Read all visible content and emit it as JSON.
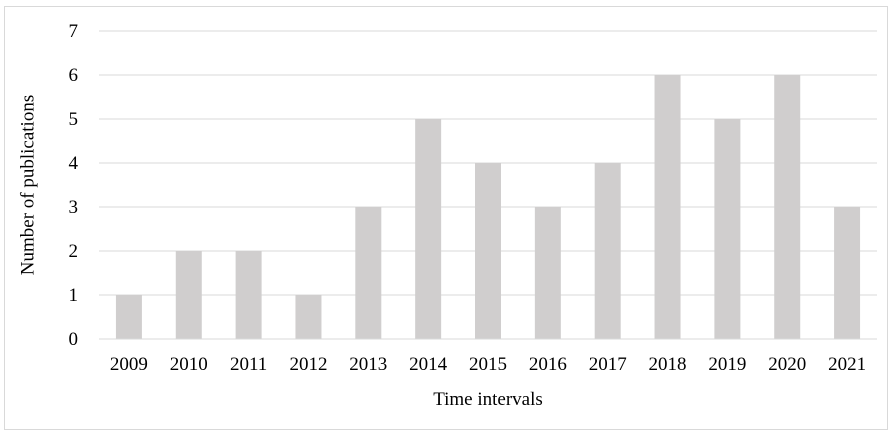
{
  "chart_data": {
    "type": "bar",
    "categories": [
      "2009",
      "2010",
      "2011",
      "2012",
      "2013",
      "2014",
      "2015",
      "2016",
      "2017",
      "2018",
      "2019",
      "2020",
      "2021"
    ],
    "values": [
      1,
      2,
      2,
      1,
      3,
      5,
      4,
      3,
      4,
      6,
      5,
      6,
      3
    ],
    "xlabel": "Time intervals",
    "ylabel": "Number of publications",
    "ylim": [
      0,
      7
    ],
    "yticks": [
      "0",
      "1",
      "2",
      "3",
      "4",
      "5",
      "6",
      "7"
    ],
    "grid": true,
    "legend": "none",
    "colors": {
      "bar": "#d0cece",
      "grid": "#d9d9d9",
      "axis": "#d9d9d9"
    }
  }
}
